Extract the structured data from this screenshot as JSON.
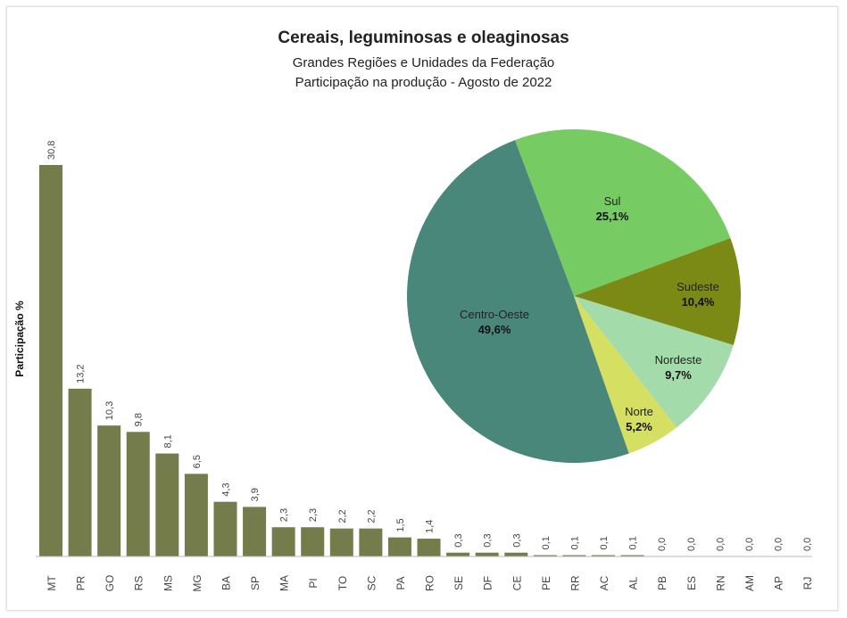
{
  "chart_data": [
    {
      "type": "bar",
      "title": "Cereais, leguminosas e oleaginosas",
      "subtitle": [
        "Grandes Regiões e Unidades da Federação",
        "Participação na produção - Agosto de 2022"
      ],
      "ylabel": "Participação %",
      "xlabel": "",
      "categories": [
        "MT",
        "PR",
        "GO",
        "RS",
        "MS",
        "MG",
        "BA",
        "SP",
        "MA",
        "PI",
        "TO",
        "SC",
        "PA",
        "RO",
        "SE",
        "DF",
        "CE",
        "PE",
        "RR",
        "AC",
        "AL",
        "PB",
        "ES",
        "RN",
        "AM",
        "AP",
        "RJ"
      ],
      "values": [
        30.8,
        13.2,
        10.3,
        9.8,
        8.1,
        6.5,
        4.3,
        3.9,
        2.3,
        2.3,
        2.2,
        2.2,
        1.5,
        1.4,
        0.3,
        0.3,
        0.3,
        0.1,
        0.1,
        0.1,
        0.1,
        0.0,
        0.0,
        0.0,
        0.0,
        0.0,
        0.0
      ],
      "labels": [
        "30,8",
        "13,2",
        "10,3",
        "9,8",
        "8,1",
        "6,5",
        "4,3",
        "3,9",
        "2,3",
        "2,3",
        "2,2",
        "2,2",
        "1,5",
        "1,4",
        "0,3",
        "0,3",
        "0,3",
        "0,1",
        "0,1",
        "0,1",
        "0,1",
        "0,0",
        "0,0",
        "0,0",
        "0,0",
        "0,0",
        "0,0"
      ],
      "ylim": [
        0,
        30.8
      ],
      "grid": false,
      "color": "#757c4c"
    },
    {
      "type": "pie",
      "slices": [
        {
          "name": "Sul",
          "value": 25.1,
          "label": "25,1%",
          "color": "#76cb62"
        },
        {
          "name": "Sudeste",
          "value": 10.4,
          "label": "10,4%",
          "color": "#7a8a14"
        },
        {
          "name": "Nordeste",
          "value": 9.7,
          "label": "9,7%",
          "color": "#a3dcaa"
        },
        {
          "name": "Norte",
          "value": 5.2,
          "label": "5,2%",
          "color": "#d5df62"
        },
        {
          "name": "Centro-Oeste",
          "value": 49.6,
          "label": "49,6%",
          "color": "#4a877b"
        }
      ]
    }
  ]
}
